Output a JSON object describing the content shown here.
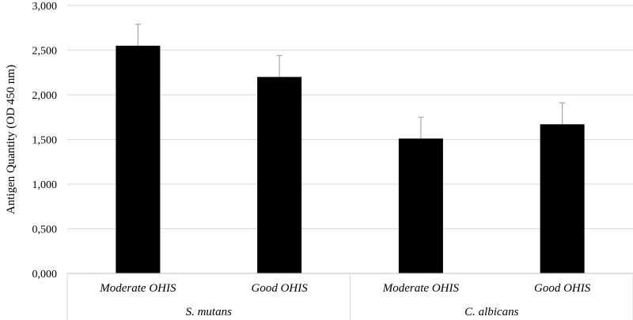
{
  "chart_data": {
    "type": "bar",
    "title": "",
    "xlabel": "",
    "ylabel": "Antigen Quantity (OD 450 nm)",
    "ylim": [
      0,
      3
    ],
    "yticks": [
      0,
      0.5,
      1,
      1.5,
      2,
      2.5,
      3
    ],
    "ytick_labels": [
      "0,000",
      "0,500",
      "1,000",
      "1,500",
      "2,000",
      "2,500",
      "3,000"
    ],
    "grid": "horizontal",
    "groups": [
      {
        "name": "S. mutans",
        "categories": [
          "Moderate OHIS",
          "Good OHIS"
        ]
      },
      {
        "name": "C. albicans",
        "categories": [
          "Moderate OHIS",
          "Good OHIS"
        ]
      }
    ],
    "categories": [
      "Moderate OHIS",
      "Good OHIS",
      "Moderate OHIS",
      "Good OHIS"
    ],
    "values": [
      2.55,
      2.2,
      1.51,
      1.67
    ],
    "error_upper": [
      0.24,
      0.24,
      0.24,
      0.24
    ],
    "bar_color": "#000000",
    "error_color": "#a6a6a6",
    "grid_color": "#d9d9d9"
  }
}
